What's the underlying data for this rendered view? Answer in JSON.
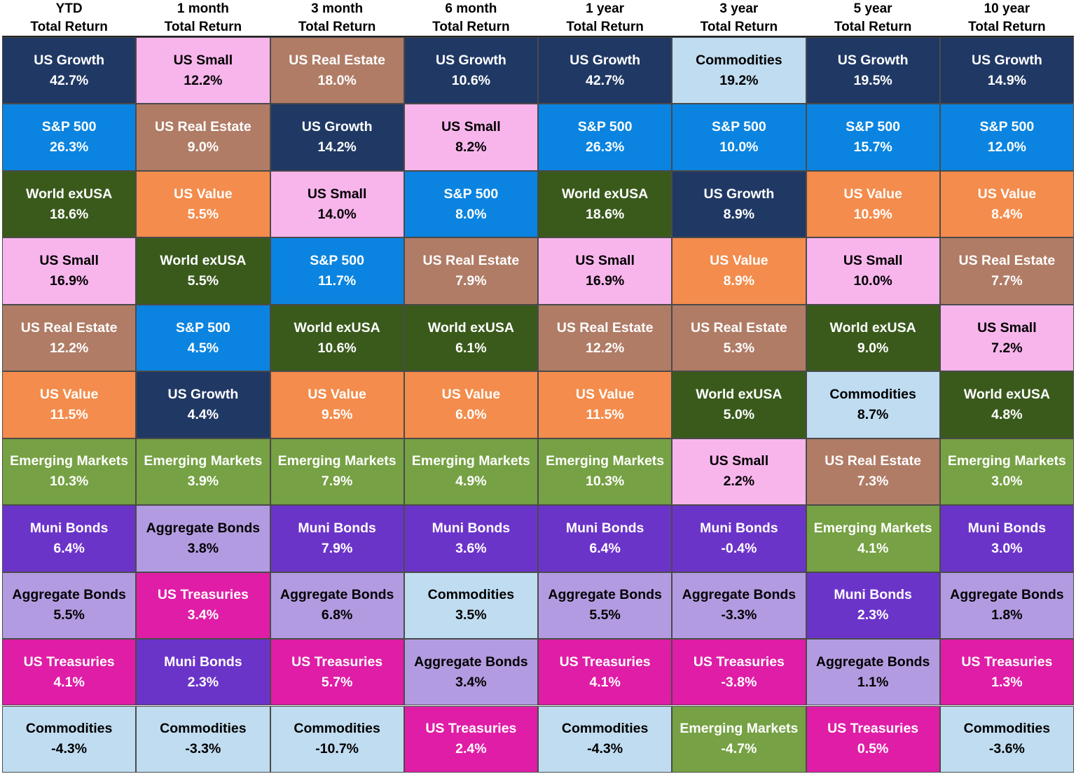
{
  "table": {
    "columns": [
      {
        "period": "YTD",
        "subtitle": "Total Return",
        "cells": [
          {
            "name": "US Growth",
            "value": "42.7%",
            "bg": "#203864",
            "fg": "#ffffff"
          },
          {
            "name": "S&P 500",
            "value": "26.3%",
            "bg": "#0a84e0",
            "fg": "#ffffff"
          },
          {
            "name": "World exUSA",
            "value": "18.6%",
            "bg": "#3a5a1c",
            "fg": "#ffffff"
          },
          {
            "name": "US Small",
            "value": "16.9%",
            "bg": "#f8b5ec",
            "fg": "#000000"
          },
          {
            "name": "US Real Estate",
            "value": "12.2%",
            "bg": "#b07c66",
            "fg": "#ffffff"
          },
          {
            "name": "US Value",
            "value": "11.5%",
            "bg": "#f38c4c",
            "fg": "#ffffff"
          },
          {
            "name": "Emerging Markets",
            "value": "10.3%",
            "bg": "#76a144",
            "fg": "#ffffff"
          },
          {
            "name": "Muni Bonds",
            "value": "6.4%",
            "bg": "#6b34c9",
            "fg": "#ffffff"
          },
          {
            "name": "Aggregate Bonds",
            "value": "5.5%",
            "bg": "#b39be1",
            "fg": "#000000"
          },
          {
            "name": "US Treasuries",
            "value": "4.1%",
            "bg": "#df1da6",
            "fg": "#ffffff"
          },
          {
            "name": "Commodities",
            "value": "-4.3%",
            "bg": "#c0dcf0",
            "fg": "#000000"
          }
        ]
      },
      {
        "period": "1 month",
        "subtitle": "Total Return",
        "cells": [
          {
            "name": "US Small",
            "value": "12.2%",
            "bg": "#f8b5ec",
            "fg": "#000000"
          },
          {
            "name": "US Real Estate",
            "value": "9.0%",
            "bg": "#b07c66",
            "fg": "#ffffff"
          },
          {
            "name": "US Value",
            "value": "5.5%",
            "bg": "#f38c4c",
            "fg": "#ffffff"
          },
          {
            "name": "World exUSA",
            "value": "5.5%",
            "bg": "#3a5a1c",
            "fg": "#ffffff"
          },
          {
            "name": "S&P 500",
            "value": "4.5%",
            "bg": "#0a84e0",
            "fg": "#ffffff"
          },
          {
            "name": "US Growth",
            "value": "4.4%",
            "bg": "#203864",
            "fg": "#ffffff"
          },
          {
            "name": "Emerging Markets",
            "value": "3.9%",
            "bg": "#76a144",
            "fg": "#ffffff"
          },
          {
            "name": "Aggregate Bonds",
            "value": "3.8%",
            "bg": "#b39be1",
            "fg": "#000000"
          },
          {
            "name": "US Treasuries",
            "value": "3.4%",
            "bg": "#df1da6",
            "fg": "#ffffff"
          },
          {
            "name": "Muni Bonds",
            "value": "2.3%",
            "bg": "#6b34c9",
            "fg": "#ffffff"
          },
          {
            "name": "Commodities",
            "value": "-3.3%",
            "bg": "#c0dcf0",
            "fg": "#000000"
          }
        ]
      },
      {
        "period": "3 month",
        "subtitle": "Total Return",
        "cells": [
          {
            "name": "US Real Estate",
            "value": "18.0%",
            "bg": "#b07c66",
            "fg": "#ffffff"
          },
          {
            "name": "US Growth",
            "value": "14.2%",
            "bg": "#203864",
            "fg": "#ffffff"
          },
          {
            "name": "US Small",
            "value": "14.0%",
            "bg": "#f8b5ec",
            "fg": "#000000"
          },
          {
            "name": "S&P 500",
            "value": "11.7%",
            "bg": "#0a84e0",
            "fg": "#ffffff"
          },
          {
            "name": "World exUSA",
            "value": "10.6%",
            "bg": "#3a5a1c",
            "fg": "#ffffff"
          },
          {
            "name": "US Value",
            "value": "9.5%",
            "bg": "#f38c4c",
            "fg": "#ffffff"
          },
          {
            "name": "Emerging Markets",
            "value": "7.9%",
            "bg": "#76a144",
            "fg": "#ffffff"
          },
          {
            "name": "Muni Bonds",
            "value": "7.9%",
            "bg": "#6b34c9",
            "fg": "#ffffff"
          },
          {
            "name": "Aggregate Bonds",
            "value": "6.8%",
            "bg": "#b39be1",
            "fg": "#000000"
          },
          {
            "name": "US Treasuries",
            "value": "5.7%",
            "bg": "#df1da6",
            "fg": "#ffffff"
          },
          {
            "name": "Commodities",
            "value": "-10.7%",
            "bg": "#c0dcf0",
            "fg": "#000000"
          }
        ]
      },
      {
        "period": "6 month",
        "subtitle": "Total Return",
        "cells": [
          {
            "name": "US Growth",
            "value": "10.6%",
            "bg": "#203864",
            "fg": "#ffffff"
          },
          {
            "name": "US Small",
            "value": "8.2%",
            "bg": "#f8b5ec",
            "fg": "#000000"
          },
          {
            "name": "S&P 500",
            "value": "8.0%",
            "bg": "#0a84e0",
            "fg": "#ffffff"
          },
          {
            "name": "US Real Estate",
            "value": "7.9%",
            "bg": "#b07c66",
            "fg": "#ffffff"
          },
          {
            "name": "World exUSA",
            "value": "6.1%",
            "bg": "#3a5a1c",
            "fg": "#ffffff"
          },
          {
            "name": "US Value",
            "value": "6.0%",
            "bg": "#f38c4c",
            "fg": "#ffffff"
          },
          {
            "name": "Emerging Markets",
            "value": "4.9%",
            "bg": "#76a144",
            "fg": "#ffffff"
          },
          {
            "name": "Muni Bonds",
            "value": "3.6%",
            "bg": "#6b34c9",
            "fg": "#ffffff"
          },
          {
            "name": "Commodities",
            "value": "3.5%",
            "bg": "#c0dcf0",
            "fg": "#000000"
          },
          {
            "name": "Aggregate Bonds",
            "value": "3.4%",
            "bg": "#b39be1",
            "fg": "#000000"
          },
          {
            "name": "US Treasuries",
            "value": "2.4%",
            "bg": "#df1da6",
            "fg": "#ffffff"
          }
        ]
      },
      {
        "period": "1 year",
        "subtitle": "Total Return",
        "cells": [
          {
            "name": "US Growth",
            "value": "42.7%",
            "bg": "#203864",
            "fg": "#ffffff"
          },
          {
            "name": "S&P 500",
            "value": "26.3%",
            "bg": "#0a84e0",
            "fg": "#ffffff"
          },
          {
            "name": "World exUSA",
            "value": "18.6%",
            "bg": "#3a5a1c",
            "fg": "#ffffff"
          },
          {
            "name": "US Small",
            "value": "16.9%",
            "bg": "#f8b5ec",
            "fg": "#000000"
          },
          {
            "name": "US Real Estate",
            "value": "12.2%",
            "bg": "#b07c66",
            "fg": "#ffffff"
          },
          {
            "name": "US Value",
            "value": "11.5%",
            "bg": "#f38c4c",
            "fg": "#ffffff"
          },
          {
            "name": "Emerging Markets",
            "value": "10.3%",
            "bg": "#76a144",
            "fg": "#ffffff"
          },
          {
            "name": "Muni Bonds",
            "value": "6.4%",
            "bg": "#6b34c9",
            "fg": "#ffffff"
          },
          {
            "name": "Aggregate Bonds",
            "value": "5.5%",
            "bg": "#b39be1",
            "fg": "#000000"
          },
          {
            "name": "US Treasuries",
            "value": "4.1%",
            "bg": "#df1da6",
            "fg": "#ffffff"
          },
          {
            "name": "Commodities",
            "value": "-4.3%",
            "bg": "#c0dcf0",
            "fg": "#000000"
          }
        ]
      },
      {
        "period": "3 year",
        "subtitle": "Total Return",
        "cells": [
          {
            "name": "Commodities",
            "value": "19.2%",
            "bg": "#c0dcf0",
            "fg": "#000000"
          },
          {
            "name": "S&P 500",
            "value": "10.0%",
            "bg": "#0a84e0",
            "fg": "#ffffff"
          },
          {
            "name": "US Growth",
            "value": "8.9%",
            "bg": "#203864",
            "fg": "#ffffff"
          },
          {
            "name": "US Value",
            "value": "8.9%",
            "bg": "#f38c4c",
            "fg": "#ffffff"
          },
          {
            "name": "US Real Estate",
            "value": "5.3%",
            "bg": "#b07c66",
            "fg": "#ffffff"
          },
          {
            "name": "World exUSA",
            "value": "5.0%",
            "bg": "#3a5a1c",
            "fg": "#ffffff"
          },
          {
            "name": "US Small",
            "value": "2.2%",
            "bg": "#f8b5ec",
            "fg": "#000000"
          },
          {
            "name": "Muni Bonds",
            "value": "-0.4%",
            "bg": "#6b34c9",
            "fg": "#ffffff"
          },
          {
            "name": "Aggregate Bonds",
            "value": "-3.3%",
            "bg": "#b39be1",
            "fg": "#000000"
          },
          {
            "name": "US Treasuries",
            "value": "-3.8%",
            "bg": "#df1da6",
            "fg": "#ffffff"
          },
          {
            "name": "Emerging Markets",
            "value": "-4.7%",
            "bg": "#76a144",
            "fg": "#ffffff"
          }
        ]
      },
      {
        "period": "5 year",
        "subtitle": "Total Return",
        "cells": [
          {
            "name": "US Growth",
            "value": "19.5%",
            "bg": "#203864",
            "fg": "#ffffff"
          },
          {
            "name": "S&P 500",
            "value": "15.7%",
            "bg": "#0a84e0",
            "fg": "#ffffff"
          },
          {
            "name": "US Value",
            "value": "10.9%",
            "bg": "#f38c4c",
            "fg": "#ffffff"
          },
          {
            "name": "US Small",
            "value": "10.0%",
            "bg": "#f8b5ec",
            "fg": "#000000"
          },
          {
            "name": "World exUSA",
            "value": "9.0%",
            "bg": "#3a5a1c",
            "fg": "#ffffff"
          },
          {
            "name": "Commodities",
            "value": "8.7%",
            "bg": "#c0dcf0",
            "fg": "#000000"
          },
          {
            "name": "US Real Estate",
            "value": "7.3%",
            "bg": "#b07c66",
            "fg": "#ffffff"
          },
          {
            "name": "Emerging Markets",
            "value": "4.1%",
            "bg": "#76a144",
            "fg": "#ffffff"
          },
          {
            "name": "Muni Bonds",
            "value": "2.3%",
            "bg": "#6b34c9",
            "fg": "#ffffff"
          },
          {
            "name": "Aggregate Bonds",
            "value": "1.1%",
            "bg": "#b39be1",
            "fg": "#000000"
          },
          {
            "name": "US Treasuries",
            "value": "0.5%",
            "bg": "#df1da6",
            "fg": "#ffffff"
          }
        ]
      },
      {
        "period": "10 year",
        "subtitle": "Total Return",
        "cells": [
          {
            "name": "US Growth",
            "value": "14.9%",
            "bg": "#203864",
            "fg": "#ffffff"
          },
          {
            "name": "S&P 500",
            "value": "12.0%",
            "bg": "#0a84e0",
            "fg": "#ffffff"
          },
          {
            "name": "US Value",
            "value": "8.4%",
            "bg": "#f38c4c",
            "fg": "#ffffff"
          },
          {
            "name": "US Real Estate",
            "value": "7.7%",
            "bg": "#b07c66",
            "fg": "#ffffff"
          },
          {
            "name": "US Small",
            "value": "7.2%",
            "bg": "#f8b5ec",
            "fg": "#000000"
          },
          {
            "name": "World exUSA",
            "value": "4.8%",
            "bg": "#3a5a1c",
            "fg": "#ffffff"
          },
          {
            "name": "Emerging Markets",
            "value": "3.0%",
            "bg": "#76a144",
            "fg": "#ffffff"
          },
          {
            "name": "Muni Bonds",
            "value": "3.0%",
            "bg": "#6b34c9",
            "fg": "#ffffff"
          },
          {
            "name": "Aggregate Bonds",
            "value": "1.8%",
            "bg": "#b39be1",
            "fg": "#000000"
          },
          {
            "name": "US Treasuries",
            "value": "1.3%",
            "bg": "#df1da6",
            "fg": "#ffffff"
          },
          {
            "name": "Commodities",
            "value": "-3.6%",
            "bg": "#c0dcf0",
            "fg": "#000000"
          }
        ]
      }
    ]
  }
}
